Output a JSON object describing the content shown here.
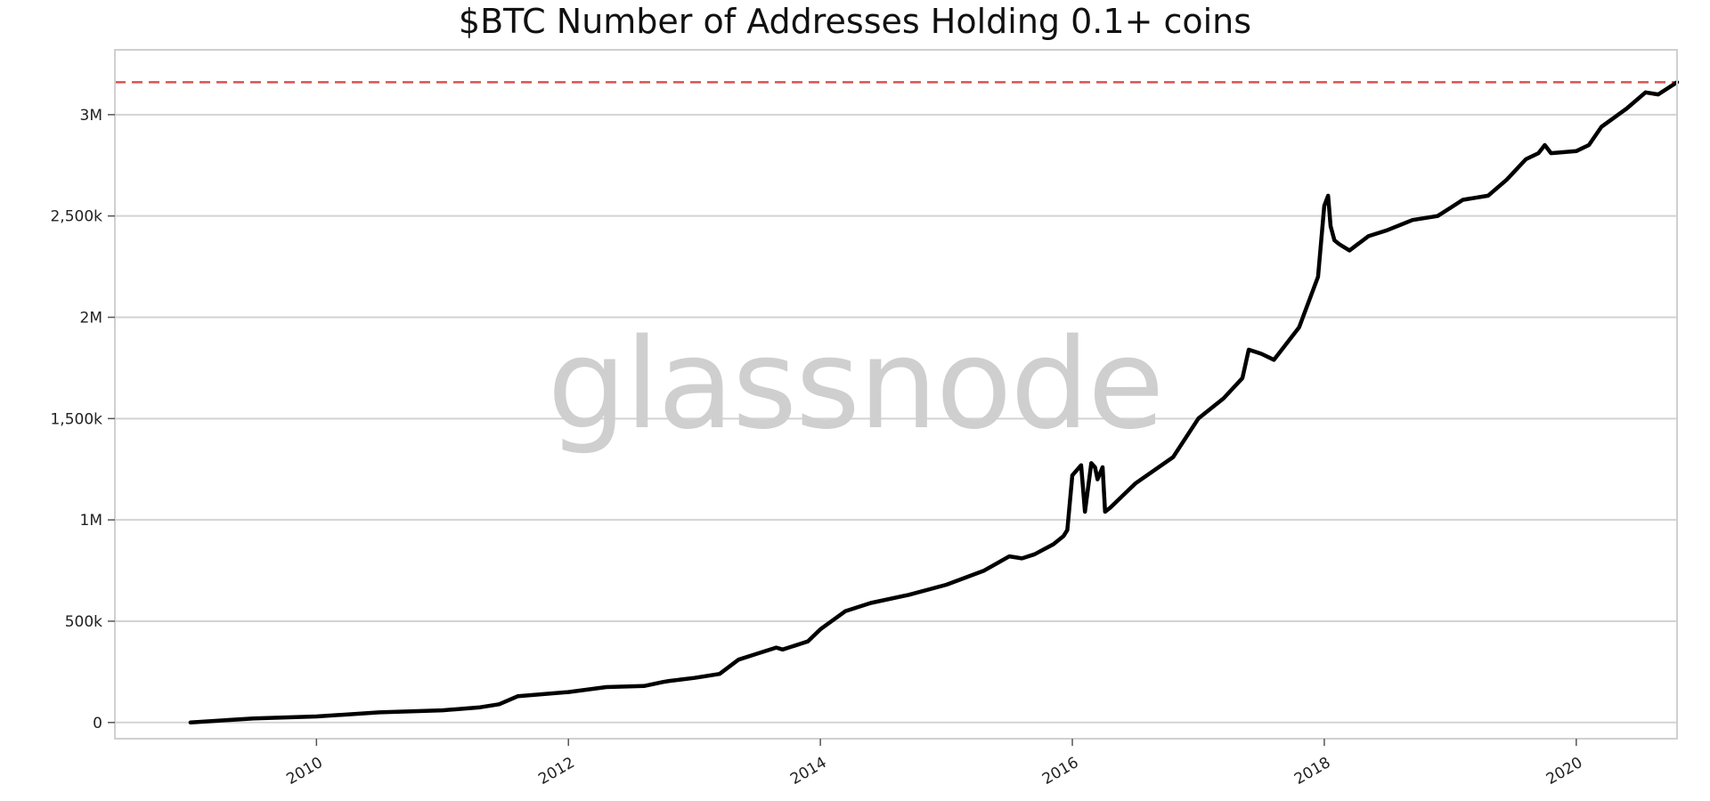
{
  "chart_data": {
    "type": "line",
    "title": "$BTC Number of Addresses Holding 0.1+ coins",
    "xlabel": "",
    "ylabel": "",
    "watermark": "glassnode",
    "grid": "horizontal",
    "xlim": [
      2008.4,
      2020.8
    ],
    "ylim": [
      -80000,
      3320000
    ],
    "x_ticks": [
      2010,
      2012,
      2014,
      2016,
      2018,
      2020
    ],
    "x_tick_labels": [
      "2010",
      "2012",
      "2014",
      "2016",
      "2018",
      "2020"
    ],
    "y_ticks": [
      0,
      500000,
      1000000,
      1500000,
      2000000,
      2500000,
      3000000
    ],
    "y_tick_labels": [
      "0",
      "500k",
      "1M",
      "1,500k",
      "2M",
      "2,500k",
      "3M"
    ],
    "reference_line": {
      "y": 3160000,
      "color": "#d9534f",
      "style": "dashed"
    },
    "line_color": "#000000",
    "series": [
      {
        "x": [
          2009.0,
          2009.5,
          2010.0,
          2010.5,
          2011.0,
          2011.3,
          2011.45,
          2011.6,
          2012.0,
          2012.3,
          2012.6,
          2012.75,
          2012.8,
          2013.0,
          2013.2,
          2013.35,
          2013.5,
          2013.65,
          2013.7,
          2013.8,
          2013.85,
          2013.9,
          2014.0,
          2014.2,
          2014.4,
          2014.7,
          2015.0,
          2015.3,
          2015.5,
          2015.6,
          2015.7,
          2015.85,
          2015.93,
          2015.96,
          2016.0,
          2016.07,
          2016.1,
          2016.15,
          2016.18,
          2016.2,
          2016.24,
          2016.26,
          2016.3,
          2016.5,
          2016.8,
          2017.0,
          2017.2,
          2017.35,
          2017.4,
          2017.5,
          2017.6,
          2017.65,
          2017.8,
          2017.95,
          2018.0,
          2018.03,
          2018.05,
          2018.08,
          2018.12,
          2018.2,
          2018.35,
          2018.5,
          2018.7,
          2018.9,
          2019.0,
          2019.1,
          2019.3,
          2019.45,
          2019.6,
          2019.7,
          2019.75,
          2019.8,
          2020.0,
          2020.1,
          2020.2,
          2020.4,
          2020.55,
          2020.65,
          2020.75,
          2020.8
        ],
        "values": [
          0,
          20000,
          30000,
          50000,
          60000,
          75000,
          90000,
          130000,
          150000,
          175000,
          180000,
          200000,
          205000,
          220000,
          240000,
          310000,
          340000,
          370000,
          360000,
          380000,
          390000,
          400000,
          460000,
          550000,
          590000,
          630000,
          680000,
          750000,
          820000,
          810000,
          830000,
          880000,
          920000,
          950000,
          1220000,
          1270000,
          1040000,
          1280000,
          1260000,
          1200000,
          1260000,
          1040000,
          1060000,
          1180000,
          1310000,
          1500000,
          1600000,
          1700000,
          1840000,
          1820000,
          1790000,
          1830000,
          1950000,
          2200000,
          2550000,
          2600000,
          2450000,
          2380000,
          2360000,
          2330000,
          2400000,
          2430000,
          2480000,
          2500000,
          2540000,
          2580000,
          2600000,
          2680000,
          2780000,
          2810000,
          2850000,
          2810000,
          2820000,
          2850000,
          2940000,
          3030000,
          3110000,
          3100000,
          3140000,
          3160000
        ]
      }
    ]
  }
}
